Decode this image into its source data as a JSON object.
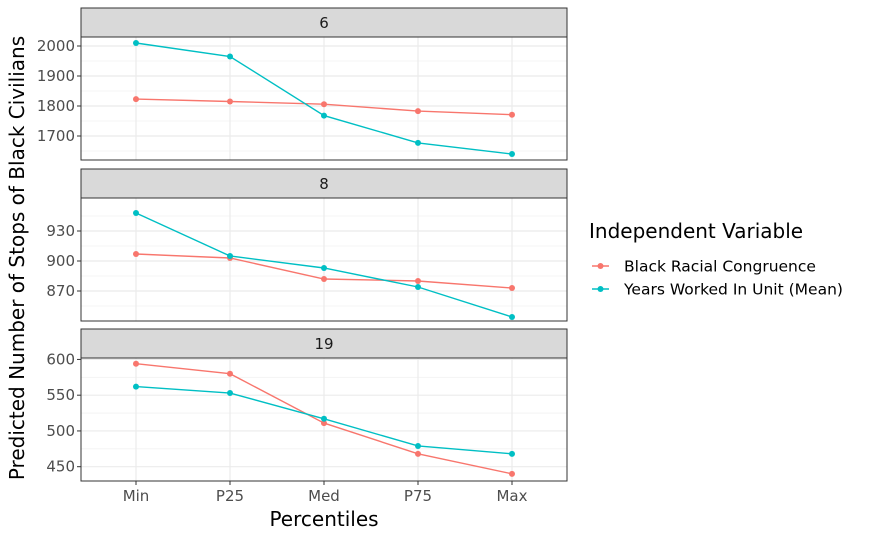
{
  "chart_data": {
    "type": "line",
    "xlabel": "Percentiles",
    "ylabel": "Predicted Number of Stops of Black Civilians",
    "categories": [
      "Min",
      "P25",
      "Med",
      "P75",
      "Max"
    ],
    "legend": {
      "title": "Independent Variable",
      "placement": "right",
      "entries": [
        "Black Racial Congruence",
        "Years Worked In Unit (Mean)"
      ]
    },
    "colors": {
      "Black Racial Congruence": "#F8766D",
      "Years Worked In Unit (Mean)": "#00BFC4"
    },
    "grid": true,
    "facets": [
      {
        "label": "6",
        "ylim": [
          1620,
          2030
        ],
        "yticks": [
          1700,
          1800,
          1900,
          2000
        ],
        "series": [
          {
            "name": "Black Racial Congruence",
            "values": [
              1823,
              1815,
              1806,
              1783,
              1771
            ]
          },
          {
            "name": "Years Worked In Unit (Mean)",
            "values": [
              2010,
              1965,
              1768,
              1677,
              1640
            ]
          }
        ]
      },
      {
        "label": "8",
        "ylim": [
          840,
          963
        ],
        "yticks": [
          870,
          900,
          930
        ],
        "series": [
          {
            "name": "Black Racial Congruence",
            "values": [
              907,
              903,
              882,
              880,
              873
            ]
          },
          {
            "name": "Years Worked In Unit (Mean)",
            "values": [
              948,
              905,
              893,
              874,
              844
            ]
          }
        ]
      },
      {
        "label": "19",
        "ylim": [
          430,
          602
        ],
        "yticks": [
          450,
          500,
          550,
          600
        ],
        "series": [
          {
            "name": "Black Racial Congruence",
            "values": [
              594,
              580,
              511,
              468,
              440
            ]
          },
          {
            "name": "Years Worked In Unit (Mean)",
            "values": [
              562,
              553,
              517,
              479,
              468
            ]
          }
        ]
      }
    ]
  }
}
